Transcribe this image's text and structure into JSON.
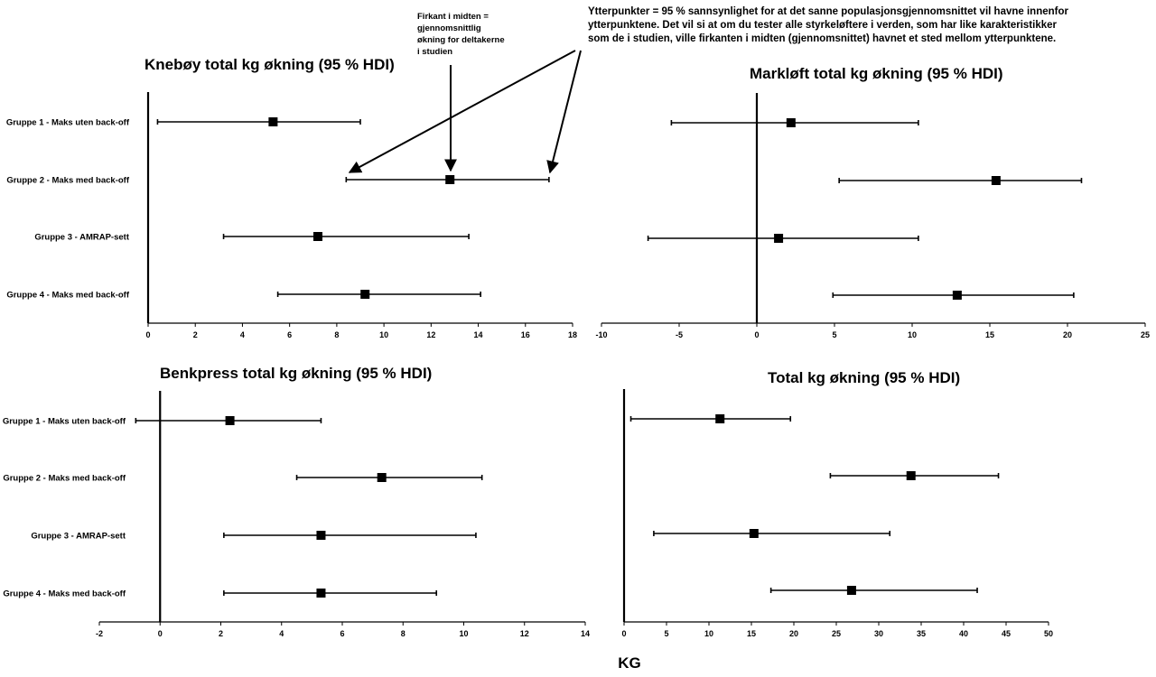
{
  "chart_data": [
    {
      "type": "forest",
      "title": "Knebøy total kg økning (95 % HDI)",
      "categories": [
        "Gruppe 1 - Maks uten back-off",
        "Gruppe 2 - Maks med back-off",
        "Gruppe 3 - AMRAP-sett",
        "Gruppe 4 - Maks med back-off"
      ],
      "mean": [
        5.3,
        12.8,
        7.2,
        9.2
      ],
      "lower": [
        0.4,
        8.4,
        3.2,
        5.5
      ],
      "upper": [
        9.0,
        17.0,
        13.6,
        14.1
      ],
      "xlim": [
        0,
        18
      ],
      "xticks": [
        0,
        2,
        4,
        6,
        8,
        10,
        12,
        14,
        16,
        18
      ]
    },
    {
      "type": "forest",
      "title": "Markløft total kg økning (95 % HDI)",
      "categories": [
        "Gruppe 1 - Maks uten back-off",
        "Gruppe 2 - Maks med back-off",
        "Gruppe 3 - AMRAP-sett",
        "Gruppe 4 - Maks med back-off"
      ],
      "mean": [
        2.2,
        15.4,
        1.4,
        12.9
      ],
      "lower": [
        -5.5,
        5.3,
        -7.0,
        4.9
      ],
      "upper": [
        10.4,
        20.9,
        10.4,
        20.4
      ],
      "xlim": [
        -10,
        25
      ],
      "xticks": [
        -10,
        -5,
        0,
        5,
        10,
        15,
        20,
        25
      ]
    },
    {
      "type": "forest",
      "title": "Benkpress total kg økning (95 % HDI)",
      "categories": [
        "Gruppe 1 - Maks uten back-off",
        "Gruppe 2 - Maks med back-off",
        "Gruppe 3 - AMRAP-sett",
        "Gruppe 4 - Maks med back-off"
      ],
      "mean": [
        2.3,
        7.3,
        5.3,
        5.3
      ],
      "lower": [
        -0.8,
        4.5,
        2.1,
        2.1
      ],
      "upper": [
        5.3,
        10.6,
        10.4,
        9.1
      ],
      "xlim": [
        -2,
        14
      ],
      "xticks": [
        -2,
        0,
        2,
        4,
        6,
        8,
        10,
        12,
        14
      ]
    },
    {
      "type": "forest",
      "title": "Total kg økning (95 % HDI)",
      "categories": [
        "",
        "",
        "",
        ""
      ],
      "mean": [
        11.3,
        33.8,
        15.3,
        26.8
      ],
      "lower": [
        0.8,
        24.3,
        3.5,
        17.3
      ],
      "upper": [
        19.6,
        44.1,
        31.3,
        41.6
      ],
      "xlim": [
        0,
        50
      ],
      "xticks": [
        0,
        5,
        10,
        15,
        20,
        25,
        30,
        35,
        40,
        45,
        50
      ]
    }
  ],
  "annotations": {
    "square_note": [
      "Firkant i midten =",
      "gjennomsnittlig",
      "økning for deltakerne",
      "i studien"
    ],
    "interval_note": [
      "Ytterpunkter =  95 % sannsynlighet for at det sanne populasjonsgjennomsnittet vil havne innenfor",
      "ytterpunktene. Det vil si at om du tester alle styrkeløftere i verden, som har like karakteristikker",
      "som de i studien, ville firkanten i midten (gjennomsnittet) havnet et sted mellom ytterpunktene."
    ]
  },
  "xlabel": "KG"
}
